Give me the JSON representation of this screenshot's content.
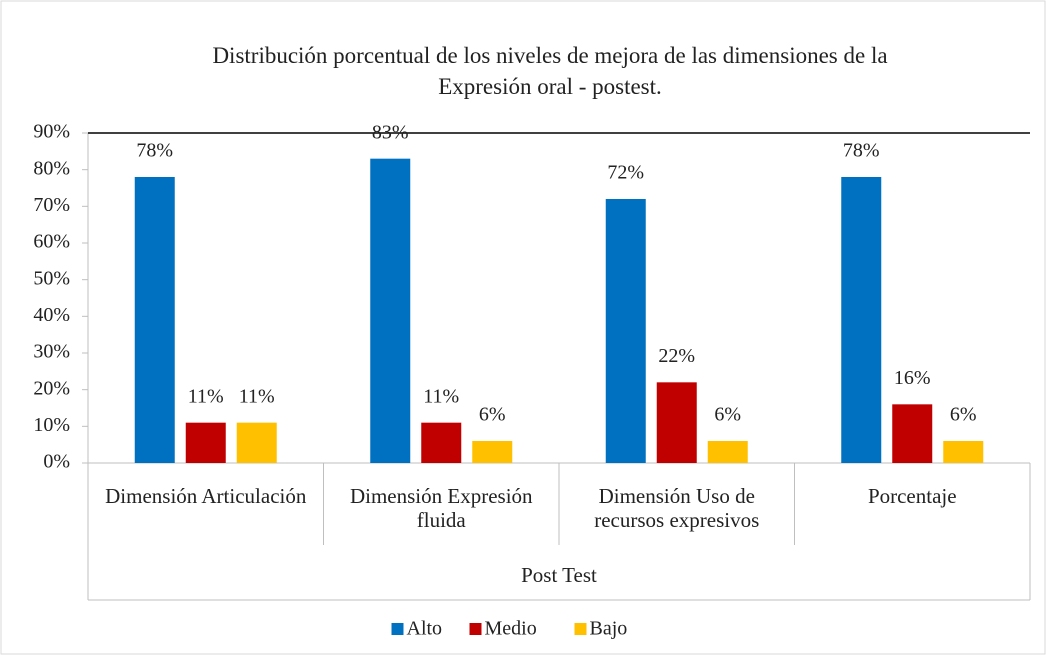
{
  "chart_data": {
    "type": "bar",
    "title": "Distribución porcentual de los niveles de mejora de las dimensiones de la Expresión oral - postest.",
    "categories": [
      "Dimensión Articulación",
      "Dimensión Expresión fluida",
      "Dimensión Uso de recursos expresivos",
      "Porcentaje"
    ],
    "group_label": "Post Test",
    "series": [
      {
        "name": "Alto",
        "color": "#0070c0",
        "values": [
          78,
          83,
          72,
          78
        ],
        "value_labels": [
          "78%",
          "83%",
          "72%",
          "78%"
        ]
      },
      {
        "name": "Medio",
        "color": "#c00000",
        "values": [
          11,
          11,
          22,
          16
        ],
        "value_labels": [
          "11%",
          "11%",
          "22%",
          "16%"
        ]
      },
      {
        "name": "Bajo",
        "color": "#ffc000",
        "values": [
          11,
          6,
          6,
          6
        ],
        "value_labels": [
          "11%",
          "6%",
          "6%",
          "6%"
        ]
      }
    ],
    "ylim": [
      0,
      90
    ],
    "yticks": [
      {
        "value": 0,
        "label": "0%"
      },
      {
        "value": 10,
        "label": "10%"
      },
      {
        "value": 20,
        "label": "20%"
      },
      {
        "value": 30,
        "label": "30%"
      },
      {
        "value": 40,
        "label": "40%"
      },
      {
        "value": 50,
        "label": "50%"
      },
      {
        "value": 60,
        "label": "60%"
      },
      {
        "value": 70,
        "label": "70%"
      },
      {
        "value": 80,
        "label": "80%"
      },
      {
        "value": 90,
        "label": "90%"
      }
    ],
    "grid": false,
    "legend": "bottom"
  }
}
